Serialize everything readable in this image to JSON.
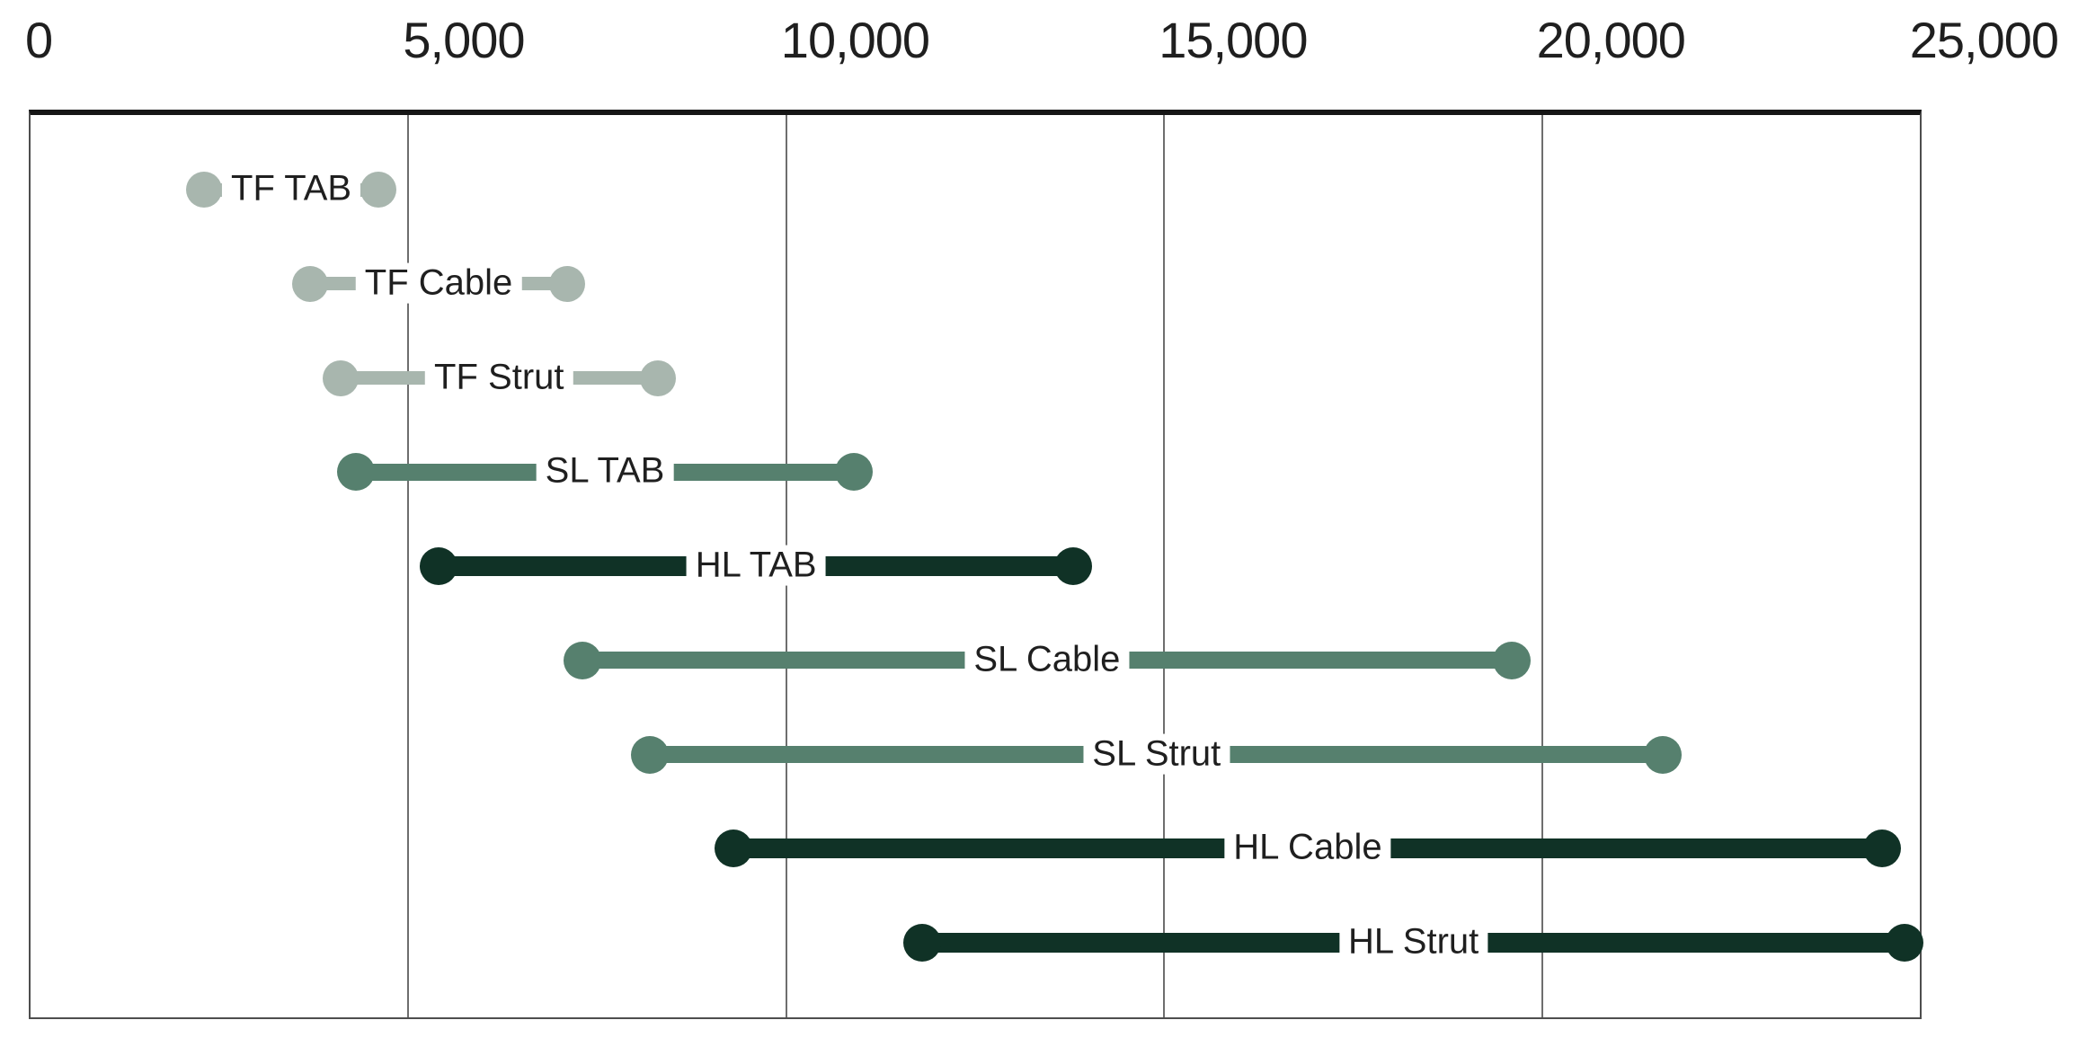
{
  "chart_data": {
    "type": "dumbbell",
    "orientation": "horizontal",
    "title": "",
    "xlabel": "",
    "ylabel": "",
    "x_axis": {
      "min": 0,
      "max": 25000,
      "ticks": [
        {
          "value": 0,
          "label": "0"
        },
        {
          "value": 5000,
          "label": "5,000"
        },
        {
          "value": 10000,
          "label": "10,000"
        },
        {
          "value": 15000,
          "label": "15,000"
        },
        {
          "value": 20000,
          "label": "20,000"
        },
        {
          "value": 25000,
          "label": "25,000"
        }
      ],
      "gridlines": [
        5000,
        10000,
        15000,
        20000
      ]
    },
    "series": [
      {
        "label": "TF TAB",
        "start": 2300,
        "end": 4600,
        "group": "TF"
      },
      {
        "label": "TF Cable",
        "start": 3700,
        "end": 7100,
        "group": "TF"
      },
      {
        "label": "TF Strut",
        "start": 4100,
        "end": 8300,
        "group": "TF"
      },
      {
        "label": "SL TAB",
        "start": 4300,
        "end": 10900,
        "group": "SL"
      },
      {
        "label": "HL TAB",
        "start": 5400,
        "end": 13800,
        "group": "HL"
      },
      {
        "label": "SL Cable",
        "start": 7300,
        "end": 19600,
        "group": "SL"
      },
      {
        "label": "SL Strut",
        "start": 8200,
        "end": 21600,
        "group": "SL"
      },
      {
        "label": "HL Cable",
        "start": 9300,
        "end": 24500,
        "group": "HL"
      },
      {
        "label": "HL Strut",
        "start": 11800,
        "end": 24800,
        "group": "HL"
      }
    ],
    "group_colors": {
      "TF": "#a8b6ae",
      "SL": "#56806e",
      "HL": "#103226"
    },
    "group_line_thickness": {
      "TF": 15,
      "SL": 19,
      "HL": 22
    },
    "group_dot_diameter": {
      "TF": 40,
      "SL": 42,
      "HL": 42
    },
    "text_color": "#1f1f1f",
    "gridline_color": "#6e6e6e",
    "legend": "none",
    "grid": "vertical-only"
  }
}
